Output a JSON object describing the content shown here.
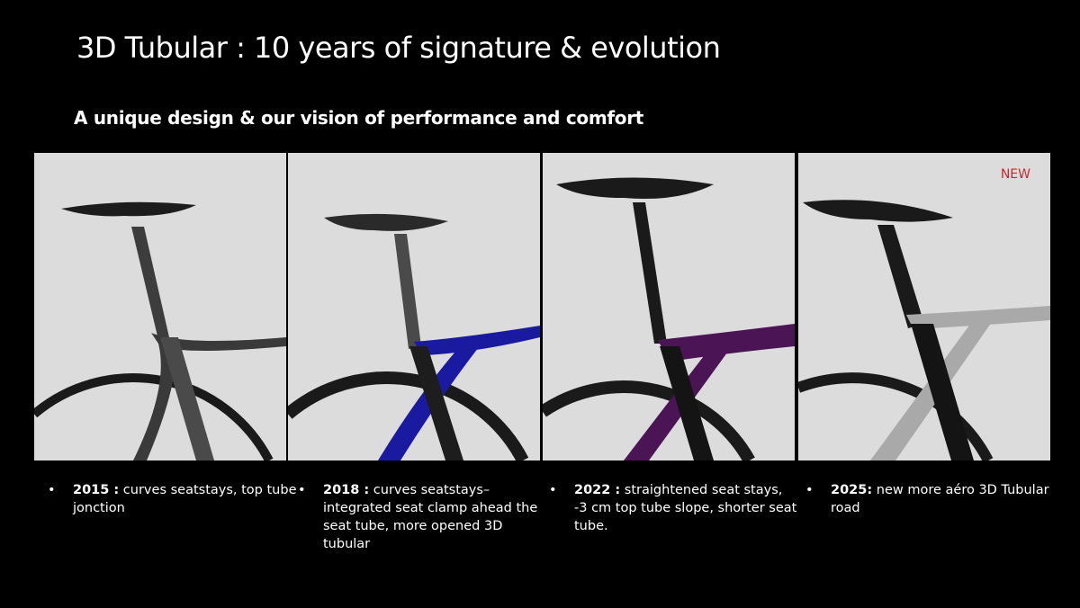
{
  "title": "3D Tubular : 10 years of signature & evolution",
  "subtitle": "A unique design & our vision of performance and comfort",
  "panels": [
    {
      "year": "2015 :",
      "text": " curves seatstays,  top tube jonction",
      "stay_color": "#3a3a3a",
      "frame_color": "#4a4a4a"
    },
    {
      "year": "2018 :",
      "text": "  curves seatstays– integrated seat clamp ahead the seat tube, more opened 3D tubular",
      "stay_color": "#1a1aa0",
      "frame_color": "#1d1d1d"
    },
    {
      "year": "2022 :",
      "text": " straightened seat stays, -3 cm top tube slope, shorter seat tube.",
      "stay_color": "#4a1455",
      "frame_color": "#141414"
    },
    {
      "year": "2025:",
      "text": "  new more aéro 3D Tubular road",
      "stay_color": "#a9a9a9",
      "frame_color": "#141414",
      "badge": "NEW"
    }
  ],
  "bullet": "•"
}
